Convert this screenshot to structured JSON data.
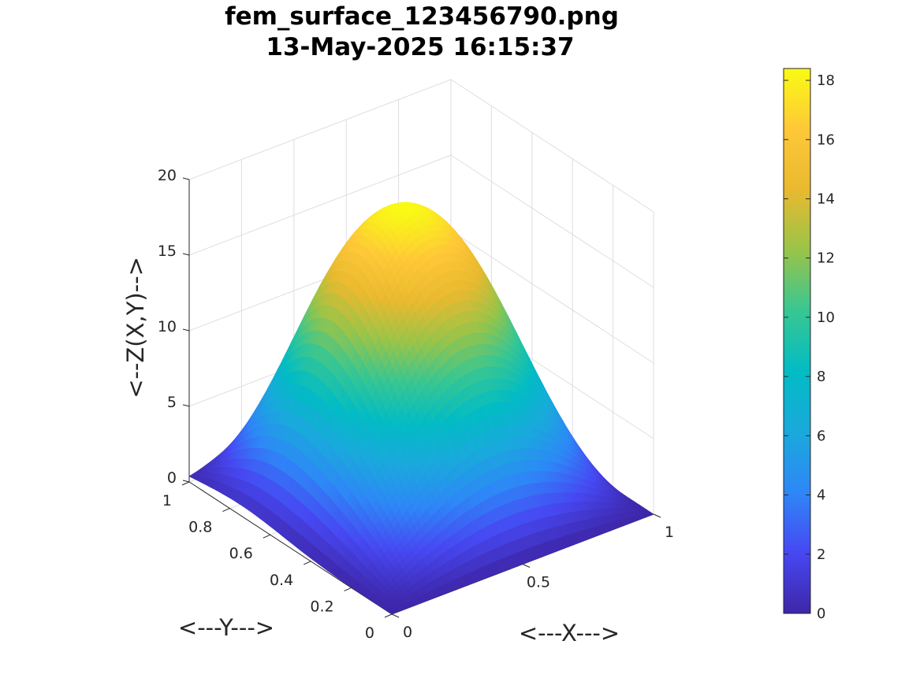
{
  "chart_data": {
    "type": "surface",
    "title_line1": "fem_surface_123456790.png",
    "title_line2": "13-May-2025 16:15:37",
    "xlabel": "<---X--->",
    "ylabel": "<---Y--->",
    "zlabel": "<--Z(X,Y)-->",
    "xlim": [
      0,
      1
    ],
    "ylim": [
      0,
      1
    ],
    "zlim": [
      0,
      20
    ],
    "x_ticks": [
      0,
      0.5,
      1
    ],
    "x_tick_labels": [
      "0",
      "0.5",
      "1"
    ],
    "y_ticks": [
      0,
      0.2,
      0.4,
      0.6,
      0.8,
      1
    ],
    "y_tick_labels": [
      "0",
      "0.2",
      "0.4",
      "0.6",
      "0.8",
      "1"
    ],
    "z_ticks": [
      0,
      5,
      10,
      15,
      20
    ],
    "z_tick_labels": [
      "0",
      "5",
      "10",
      "15",
      "20"
    ],
    "z_max": 18.4,
    "colormap": "parula",
    "colormap_stops": [
      "#3e26a8",
      "#4748f2",
      "#2e87f7",
      "#1aa9dc",
      "#02bcc4",
      "#38c692",
      "#99c449",
      "#e9b92f",
      "#fec838",
      "#f9fb14"
    ],
    "grid": true,
    "colorbar": {
      "ticks": [
        0,
        2,
        4,
        6,
        8,
        10,
        12,
        14,
        16,
        18
      ],
      "tick_labels": [
        "0",
        "2",
        "4",
        "6",
        "8",
        "10",
        "12",
        "14",
        "16",
        "18"
      ],
      "limits": [
        0,
        18.4
      ]
    }
  }
}
